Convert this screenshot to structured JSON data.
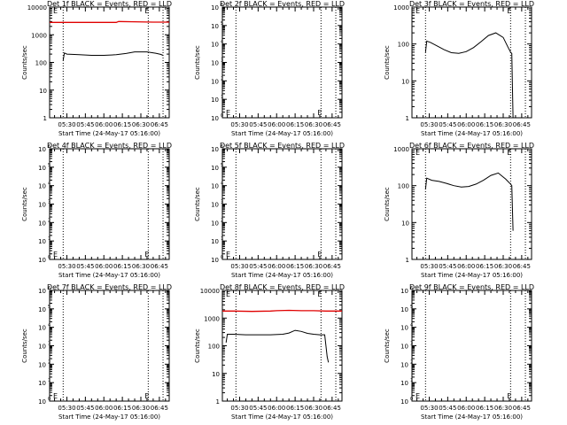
{
  "x_tick_labels": [
    "05:30",
    "05:45",
    "06:00",
    "06:15",
    "06:30",
    "06:45"
  ],
  "x_tick_minutes": [
    30,
    45,
    60,
    75,
    90,
    105
  ],
  "x_range_minutes": [
    16,
    113
  ],
  "start_time_label": "Start Time (24-May-17 05:16:00)",
  "y_label": "Counts/sec",
  "dotted_line_minutes": [
    27,
    96,
    108
  ],
  "colors": {
    "events": "#000000",
    "lld": "#e00000"
  },
  "chart_data": [
    {
      "id": "det1",
      "type": "line",
      "title": "Det 1f BLACK = Events, RED = LLD",
      "yscale": "log",
      "ylim": [
        1,
        10000
      ],
      "y_tick_labels": [
        "1",
        "10",
        "100",
        "1000",
        "10000"
      ],
      "y_tick_values": [
        1,
        10,
        100,
        1000,
        10000
      ],
      "grid": false,
      "marker_label": "E",
      "marker_pos": "top",
      "series": [
        {
          "color": "red",
          "x": [
            16,
            25,
            40,
            55,
            70,
            72,
            85,
            100,
            113
          ],
          "y": [
            2800,
            2800,
            2800,
            2800,
            2800,
            3000,
            2950,
            2850,
            2850
          ]
        },
        {
          "color": "black",
          "x": [
            27,
            28,
            30,
            40,
            50,
            60,
            70,
            78,
            85,
            95,
            102,
            106,
            108
          ],
          "y": [
            120,
            220,
            200,
            190,
            180,
            180,
            190,
            210,
            240,
            240,
            215,
            195,
            180
          ]
        }
      ]
    },
    {
      "id": "det2",
      "type": "line",
      "title": "Det 2f BLACK = Events, RED = LLD",
      "yscale": "log",
      "ylim": [
        1,
        1000000
      ],
      "y_tick_labels": [
        "10",
        "10",
        "10",
        "10",
        "10",
        "10",
        "10"
      ],
      "y_tick_exponents": [
        "0",
        "1",
        "2",
        "3",
        "4",
        "5",
        "6"
      ],
      "y_tick_values": [
        1,
        10,
        100,
        1000,
        10000,
        100000,
        1000000
      ],
      "grid": false,
      "marker_label": "E",
      "marker_pos": "bottom",
      "series": []
    },
    {
      "id": "det3",
      "type": "line",
      "title": "Det 3f BLACK = Events, RED = LLD",
      "yscale": "log",
      "ylim": [
        1,
        1000
      ],
      "y_tick_labels": [
        "1",
        "10",
        "100",
        "1000"
      ],
      "y_tick_values": [
        1,
        10,
        100,
        1000
      ],
      "grid": false,
      "marker_label": "E",
      "marker_pos": "top",
      "series": [
        {
          "color": "black",
          "x": [
            27,
            28,
            31,
            36,
            42,
            48,
            54,
            60,
            66,
            72,
            78,
            84,
            90,
            94,
            96,
            97,
            98
          ],
          "y": [
            60,
            120,
            110,
            90,
            70,
            58,
            56,
            62,
            80,
            115,
            170,
            200,
            150,
            80,
            60,
            55,
            1
          ]
        }
      ]
    },
    {
      "id": "det4",
      "type": "line",
      "title": "Det 4f BLACK = Events, RED = LLD",
      "yscale": "log",
      "ylim": [
        1,
        1000000
      ],
      "y_tick_labels": [
        "10",
        "10",
        "10",
        "10",
        "10",
        "10",
        "10"
      ],
      "y_tick_exponents": [
        "0",
        "1",
        "2",
        "3",
        "4",
        "5",
        "6"
      ],
      "y_tick_values": [
        1,
        10,
        100,
        1000,
        10000,
        100000,
        1000000
      ],
      "grid": false,
      "marker_label": "E",
      "marker_pos": "bottom",
      "series": []
    },
    {
      "id": "det5",
      "type": "line",
      "title": "Det 5f BLACK = Events, RED = LLD",
      "yscale": "log",
      "ylim": [
        1,
        1000000
      ],
      "y_tick_labels": [
        "10",
        "10",
        "10",
        "10",
        "10",
        "10",
        "10"
      ],
      "y_tick_exponents": [
        "0",
        "1",
        "2",
        "3",
        "4",
        "5",
        "6"
      ],
      "y_tick_values": [
        1,
        10,
        100,
        1000,
        10000,
        100000,
        1000000
      ],
      "grid": false,
      "marker_label": "E",
      "marker_pos": "bottom",
      "series": []
    },
    {
      "id": "det6",
      "type": "line",
      "title": "Det 6f BLACK = Events, RED = LLD",
      "yscale": "log",
      "ylim": [
        1,
        1000
      ],
      "y_tick_labels": [
        "1",
        "10",
        "100",
        "1000"
      ],
      "y_tick_values": [
        1,
        10,
        100,
        1000
      ],
      "grid": false,
      "marker_label": "E",
      "marker_pos": "top",
      "series": [
        {
          "color": "black",
          "x": [
            27,
            28,
            32,
            38,
            44,
            50,
            56,
            62,
            68,
            74,
            80,
            86,
            92,
            96,
            97,
            98
          ],
          "y": [
            80,
            160,
            140,
            130,
            115,
            100,
            92,
            95,
            110,
            140,
            190,
            220,
            150,
            110,
            100,
            6
          ]
        }
      ]
    },
    {
      "id": "det7",
      "type": "line",
      "title": "Det 7f BLACK = Events, RED = LLD",
      "yscale": "log",
      "ylim": [
        1,
        1000000
      ],
      "y_tick_labels": [
        "10",
        "10",
        "10",
        "10",
        "10",
        "10",
        "10"
      ],
      "y_tick_exponents": [
        "0",
        "1",
        "2",
        "3",
        "4",
        "5",
        "6"
      ],
      "y_tick_values": [
        1,
        10,
        100,
        1000,
        10000,
        100000,
        1000000
      ],
      "grid": false,
      "marker_label": "E",
      "marker_pos": "bottom",
      "series": []
    },
    {
      "id": "det8",
      "type": "line",
      "title": "Det 8f BLACK = Events, RED = LLD",
      "yscale": "log",
      "ylim": [
        1,
        10000
      ],
      "y_tick_labels": [
        "1",
        "10",
        "100",
        "1000",
        "10000"
      ],
      "y_tick_values": [
        1,
        10,
        100,
        1000,
        10000
      ],
      "grid": false,
      "marker_label": "E",
      "marker_pos": "top",
      "series": [
        {
          "color": "red",
          "x": [
            16,
            25,
            40,
            55,
            60,
            70,
            80,
            90,
            100,
            113
          ],
          "y": [
            1800,
            1800,
            1750,
            1800,
            1850,
            1900,
            1850,
            1850,
            1800,
            1800
          ]
        },
        {
          "color": "black",
          "x": [
            19,
            20,
            25,
            35,
            45,
            55,
            65,
            70,
            75,
            80,
            85,
            90,
            95,
            99,
            101,
            102
          ],
          "y": [
            130,
            260,
            260,
            250,
            250,
            250,
            260,
            290,
            360,
            330,
            280,
            260,
            250,
            250,
            40,
            25
          ]
        }
      ]
    },
    {
      "id": "det9",
      "type": "line",
      "title": "Det 9f BLACK = Events, RED = LLD",
      "yscale": "log",
      "ylim": [
        1,
        1000000
      ],
      "y_tick_labels": [
        "10",
        "10",
        "10",
        "10",
        "10",
        "10",
        "10"
      ],
      "y_tick_exponents": [
        "0",
        "1",
        "2",
        "3",
        "4",
        "5",
        "6"
      ],
      "y_tick_values": [
        1,
        10,
        100,
        1000,
        10000,
        100000,
        1000000
      ],
      "grid": false,
      "marker_label": "E",
      "marker_pos": "bottom",
      "series": []
    }
  ]
}
